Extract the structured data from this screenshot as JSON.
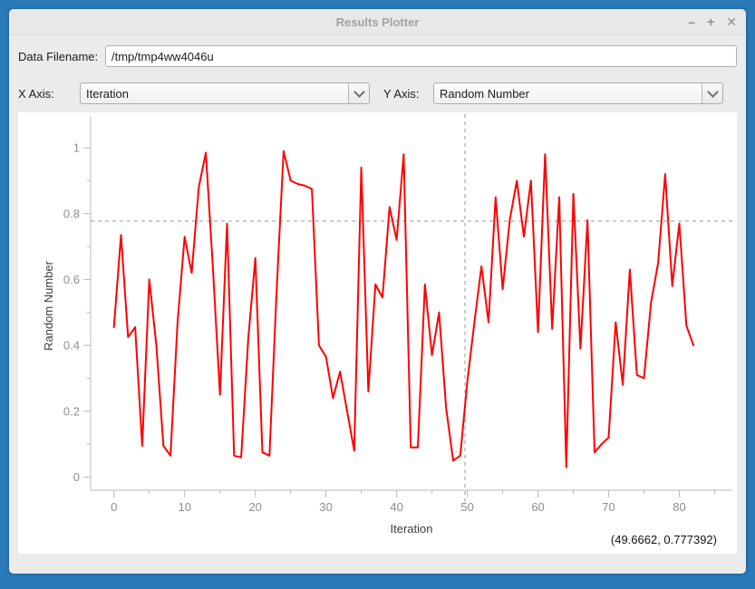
{
  "window": {
    "title": "Results Plotter",
    "controls": {
      "minimize": "–",
      "maximize": "+",
      "close": "✕"
    }
  },
  "form": {
    "filename_label": "Data Filename:",
    "filename_value": "/tmp/tmp4ww4046u",
    "x_axis_label": "X Axis:",
    "x_axis_value": "Iteration",
    "y_axis_label": "Y Axis:",
    "y_axis_value": "Random Number"
  },
  "status": {
    "coordinates": "(49.6662, 0.777392)"
  },
  "colors": {
    "frame": "#2a7ab9",
    "plot_background": "#ffffff",
    "line": "#ff0000",
    "axis": "#b9b9b9",
    "tick_text": "#8e8e8e",
    "axis_label_text": "#3c3c3c",
    "crosshair": "#999999"
  },
  "chart_data": {
    "type": "line",
    "title": "",
    "xlabel": "Iteration",
    "ylabel": "Random Number",
    "legend": "none",
    "grid": false,
    "xlim": [
      -3.3,
      87.5
    ],
    "ylim": [
      -0.04,
      1.08
    ],
    "x_ticks": [
      0,
      10,
      20,
      30,
      40,
      50,
      60,
      70,
      80
    ],
    "x_minor_ticks": [
      5,
      15,
      25,
      35,
      45,
      55,
      65,
      75,
      85
    ],
    "y_ticks": [
      0,
      0.2,
      0.4,
      0.6,
      0.8,
      1
    ],
    "y_minor_ticks": [
      0.1,
      0.3,
      0.5,
      0.7,
      0.9
    ],
    "crosshair": {
      "x": 49.6662,
      "y": 0.777392,
      "style": "dashed"
    },
    "series": [
      {
        "name": "Random Number",
        "color": "#ff0000",
        "x": [
          0,
          1,
          2,
          3,
          4,
          5,
          6,
          7,
          8,
          9,
          10,
          11,
          12,
          13,
          14,
          15,
          16,
          17,
          18,
          19,
          20,
          21,
          22,
          23,
          24,
          25,
          26,
          27,
          28,
          29,
          30,
          31,
          32,
          33,
          34,
          35,
          36,
          37,
          38,
          39,
          40,
          41,
          42,
          43,
          44,
          45,
          46,
          47,
          48,
          49,
          50,
          51,
          52,
          53,
          54,
          55,
          56,
          57,
          58,
          59,
          60,
          61,
          62,
          63,
          64,
          65,
          66,
          67,
          68,
          69,
          70,
          71,
          72,
          73,
          74,
          75,
          76,
          77,
          78,
          79,
          80,
          81,
          82
        ],
        "y": [
          0.455,
          0.735,
          0.425,
          0.455,
          0.095,
          0.6,
          0.4,
          0.095,
          0.065,
          0.47,
          0.73,
          0.62,
          0.88,
          0.985,
          0.635,
          0.25,
          0.77,
          0.065,
          0.06,
          0.42,
          0.665,
          0.075,
          0.065,
          0.56,
          0.99,
          0.9,
          0.89,
          0.885,
          0.875,
          0.4,
          0.365,
          0.24,
          0.32,
          0.2,
          0.08,
          0.94,
          0.26,
          0.585,
          0.545,
          0.82,
          0.72,
          0.98,
          0.09,
          0.09,
          0.585,
          0.37,
          0.5,
          0.21,
          0.05,
          0.065,
          0.29,
          0.47,
          0.64,
          0.47,
          0.85,
          0.57,
          0.78,
          0.9,
          0.73,
          0.9,
          0.44,
          0.98,
          0.45,
          0.85,
          0.03,
          0.86,
          0.39,
          0.78,
          0.075,
          0.1,
          0.12,
          0.47,
          0.28,
          0.63,
          0.31,
          0.3,
          0.53,
          0.65,
          0.92,
          0.58,
          0.77,
          0.46,
          0.4
        ]
      }
    ]
  }
}
